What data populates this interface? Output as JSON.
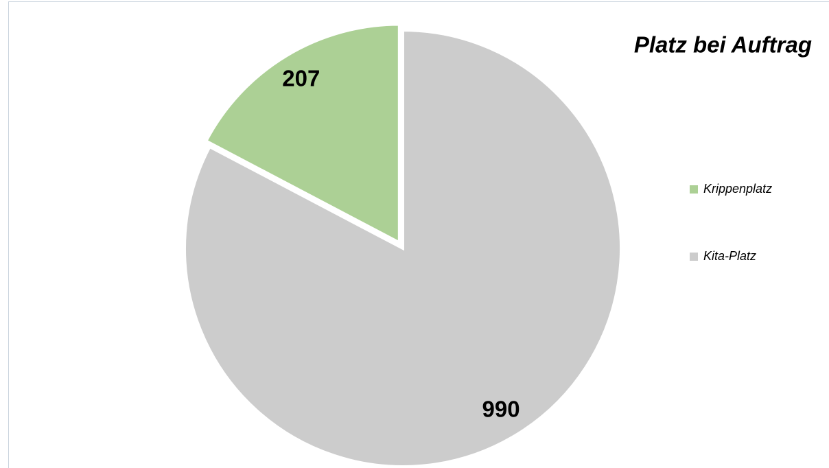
{
  "chart_data": {
    "type": "pie",
    "title": "Platz bei Auftrag",
    "categories": [
      "Krippenplatz",
      "Kita-Platz"
    ],
    "values": [
      207,
      990
    ],
    "colors": [
      "#acd095",
      "#cccccc"
    ],
    "legend": "right"
  }
}
